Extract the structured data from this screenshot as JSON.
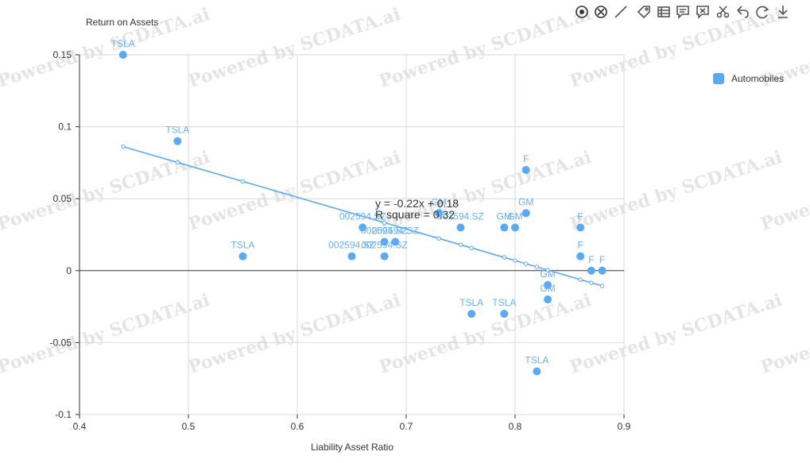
{
  "toolbar": {
    "icons": [
      "zoom-select-icon",
      "zoom-reset-icon",
      "line-tool-icon",
      "tag-icon",
      "data-view-icon",
      "annotation-icon",
      "clear-annotation-icon",
      "scissors-icon",
      "undo-icon",
      "refresh-icon",
      "download-icon"
    ]
  },
  "watermark": "Powered by SCDATA.ai",
  "legend": {
    "label": "Automobiles",
    "color": "#5aa9f5"
  },
  "regression": {
    "equation": "y = -0.22x + 0.18",
    "r_square": "R square = 0.32",
    "slope": -0.22,
    "intercept": 0.183
  },
  "chart_data": {
    "type": "scatter",
    "title": "",
    "xlabel": "Liability Asset Ratio",
    "ylabel": "Return on Assets",
    "xlim": [
      0.4,
      0.9
    ],
    "ylim": [
      -0.1,
      0.15
    ],
    "xticks": [
      0.4,
      0.5,
      0.6,
      0.7,
      0.8,
      0.9
    ],
    "yticks": [
      -0.1,
      -0.05,
      0,
      0.05,
      0.1,
      0.15
    ],
    "xtick_labels": [
      "0.4",
      "0.5",
      "0.6",
      "0.7",
      "0.8",
      "0.9"
    ],
    "ytick_labels": [
      "-0.1",
      "-0.05",
      "0",
      "0.05",
      "0.1",
      "0.15"
    ],
    "grid": true,
    "legend_position": "top-right",
    "series": [
      {
        "name": "Automobiles",
        "color": "#5aa9f5",
        "points": [
          {
            "x": 0.44,
            "y": 0.15,
            "label": "TSLA"
          },
          {
            "x": 0.49,
            "y": 0.09,
            "label": "TSLA"
          },
          {
            "x": 0.55,
            "y": 0.01,
            "label": "TSLA"
          },
          {
            "x": 0.65,
            "y": 0.01,
            "label": "002594.SZ"
          },
          {
            "x": 0.66,
            "y": 0.03,
            "label": "002594.SZ"
          },
          {
            "x": 0.68,
            "y": 0.02,
            "label": "002594.SZ"
          },
          {
            "x": 0.68,
            "y": 0.01,
            "label": "002594.SZ"
          },
          {
            "x": 0.69,
            "y": 0.02,
            "label": "002594.SZ"
          },
          {
            "x": 0.73,
            "y": 0.04,
            "label": "GM"
          },
          {
            "x": 0.75,
            "y": 0.03,
            "label": "002594.SZ"
          },
          {
            "x": 0.76,
            "y": -0.03,
            "label": "TSLA"
          },
          {
            "x": 0.79,
            "y": 0.03,
            "label": "GM"
          },
          {
            "x": 0.79,
            "y": -0.03,
            "label": "TSLA"
          },
          {
            "x": 0.8,
            "y": 0.03,
            "label": "GM"
          },
          {
            "x": 0.81,
            "y": 0.07,
            "label": "F"
          },
          {
            "x": 0.81,
            "y": 0.04,
            "label": "GM"
          },
          {
            "x": 0.82,
            "y": -0.07,
            "label": "TSLA"
          },
          {
            "x": 0.83,
            "y": -0.01,
            "label": "GM"
          },
          {
            "x": 0.83,
            "y": -0.02,
            "label": "GM"
          },
          {
            "x": 0.86,
            "y": 0.03,
            "label": "F"
          },
          {
            "x": 0.86,
            "y": 0.01,
            "label": "F"
          },
          {
            "x": 0.87,
            "y": 0,
            "label": "F"
          },
          {
            "x": 0.88,
            "y": 0,
            "label": "F"
          }
        ]
      }
    ]
  }
}
